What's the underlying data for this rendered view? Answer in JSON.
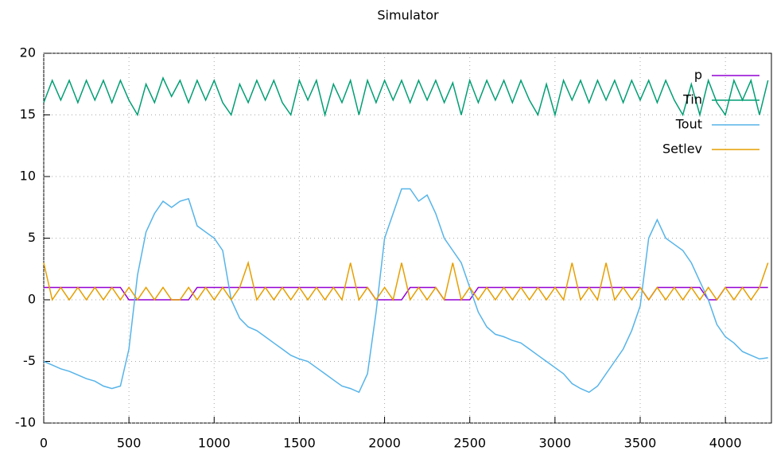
{
  "chart_data": {
    "type": "line",
    "title": "Simulator",
    "x": [
      0,
      50,
      100,
      150,
      200,
      250,
      300,
      350,
      400,
      450,
      500,
      550,
      600,
      650,
      700,
      750,
      800,
      850,
      900,
      950,
      1000,
      1050,
      1100,
      1150,
      1200,
      1250,
      1300,
      1350,
      1400,
      1450,
      1500,
      1550,
      1600,
      1650,
      1700,
      1750,
      1800,
      1850,
      1900,
      1950,
      2000,
      2050,
      2100,
      2150,
      2200,
      2250,
      2300,
      2350,
      2400,
      2450,
      2500,
      2550,
      2600,
      2650,
      2700,
      2750,
      2800,
      2850,
      2900,
      2950,
      3000,
      3050,
      3100,
      3150,
      3200,
      3250,
      3300,
      3350,
      3400,
      3450,
      3500,
      3550,
      3600,
      3650,
      3700,
      3750,
      3800,
      3850,
      3900,
      3950,
      4000,
      4050,
      4100,
      4150,
      4200,
      4250
    ],
    "series": [
      {
        "name": "p",
        "color": "#9400d3",
        "values": [
          1,
          1,
          1,
          1,
          1,
          1,
          1,
          1,
          1,
          1,
          0,
          0,
          0,
          0,
          0,
          0,
          0,
          0,
          1,
          1,
          1,
          1,
          1,
          1,
          1,
          1,
          1,
          1,
          1,
          1,
          1,
          1,
          1,
          1,
          1,
          1,
          1,
          1,
          1,
          0,
          0,
          0,
          0,
          1,
          1,
          1,
          1,
          0,
          0,
          0,
          0,
          1,
          1,
          1,
          1,
          1,
          1,
          1,
          1,
          1,
          1,
          1,
          1,
          1,
          1,
          1,
          1,
          1,
          1,
          1,
          1,
          0,
          1,
          1,
          1,
          1,
          1,
          1,
          0,
          0,
          1,
          1,
          1,
          1,
          1,
          1
        ]
      },
      {
        "name": "Tin",
        "color": "#009e73",
        "values": [
          16,
          17.8,
          16.2,
          17.8,
          16,
          17.8,
          16.2,
          17.8,
          16,
          17.8,
          16.2,
          15,
          17.5,
          16,
          18,
          16.5,
          17.8,
          16,
          17.8,
          16.2,
          17.8,
          16,
          15,
          17.5,
          16,
          17.8,
          16.2,
          17.8,
          16,
          15,
          17.8,
          16.2,
          17.8,
          15,
          17.5,
          16,
          17.8,
          15,
          17.8,
          16,
          17.8,
          16.2,
          17.8,
          16,
          17.8,
          16.2,
          17.8,
          16,
          17.6,
          15,
          17.8,
          16,
          17.8,
          16.2,
          17.8,
          16,
          17.8,
          16.2,
          15,
          17.5,
          15,
          17.8,
          16.2,
          17.8,
          16,
          17.8,
          16.2,
          17.8,
          16,
          17.8,
          16.2,
          17.8,
          16,
          17.8,
          16.2,
          15,
          17.5,
          15,
          17.8,
          16,
          15,
          17.8,
          16.2,
          17.8,
          15,
          17.8
        ]
      },
      {
        "name": "Tout",
        "color": "#56b4e9",
        "values": [
          -5,
          -5.3,
          -5.6,
          -5.8,
          -6.1,
          -6.4,
          -6.6,
          -7,
          -7.2,
          -7,
          -4,
          2,
          5.5,
          7,
          8,
          7.5,
          8,
          8.2,
          6,
          5.5,
          5,
          4,
          0,
          -1.5,
          -2.2,
          -2.5,
          -3,
          -3.5,
          -4,
          -4.5,
          -4.8,
          -5,
          -5.5,
          -6,
          -6.5,
          -7,
          -7.2,
          -7.5,
          -6,
          -1,
          5,
          7,
          9,
          9,
          8,
          8.5,
          7,
          5,
          4,
          3,
          1,
          -1,
          -2.2,
          -2.8,
          -3,
          -3.3,
          -3.5,
          -4,
          -4.5,
          -5,
          -5.5,
          -6,
          -6.8,
          -7.2,
          -7.5,
          -7,
          -6,
          -5,
          -4,
          -2.5,
          -0.5,
          5,
          6.5,
          5,
          4.5,
          4,
          3,
          1.5,
          0,
          -2,
          -3,
          -3.5,
          -4.2,
          -4.5,
          -4.8,
          -4.7
        ]
      },
      {
        "name": "Setlev",
        "color": "#e69f00",
        "values": [
          3,
          0,
          1,
          0,
          1,
          0,
          1,
          0,
          1,
          0,
          1,
          0,
          1,
          0,
          1,
          0,
          0,
          1,
          0,
          1,
          0,
          1,
          0,
          1,
          3,
          0,
          1,
          0,
          1,
          0,
          1,
          0,
          1,
          0,
          1,
          0,
          3,
          0,
          1,
          0,
          1,
          0,
          3,
          0,
          1,
          0,
          1,
          0,
          3,
          0,
          1,
          0,
          1,
          0,
          1,
          0,
          1,
          0,
          1,
          0,
          1,
          0,
          3,
          0,
          1,
          0,
          3,
          0,
          1,
          0,
          1,
          0,
          1,
          0,
          1,
          0,
          1,
          0,
          1,
          0,
          1,
          0,
          1,
          0,
          1,
          3
        ]
      }
    ],
    "xlim": [
      0,
      4270
    ],
    "xticks": [
      0,
      500,
      1000,
      1500,
      2000,
      2500,
      3000,
      3500,
      4000
    ],
    "ylim": [
      -10,
      20
    ],
    "yticks": [
      -10,
      -5,
      0,
      5,
      10,
      15,
      20
    ],
    "grid": true,
    "legend": "top-right"
  }
}
